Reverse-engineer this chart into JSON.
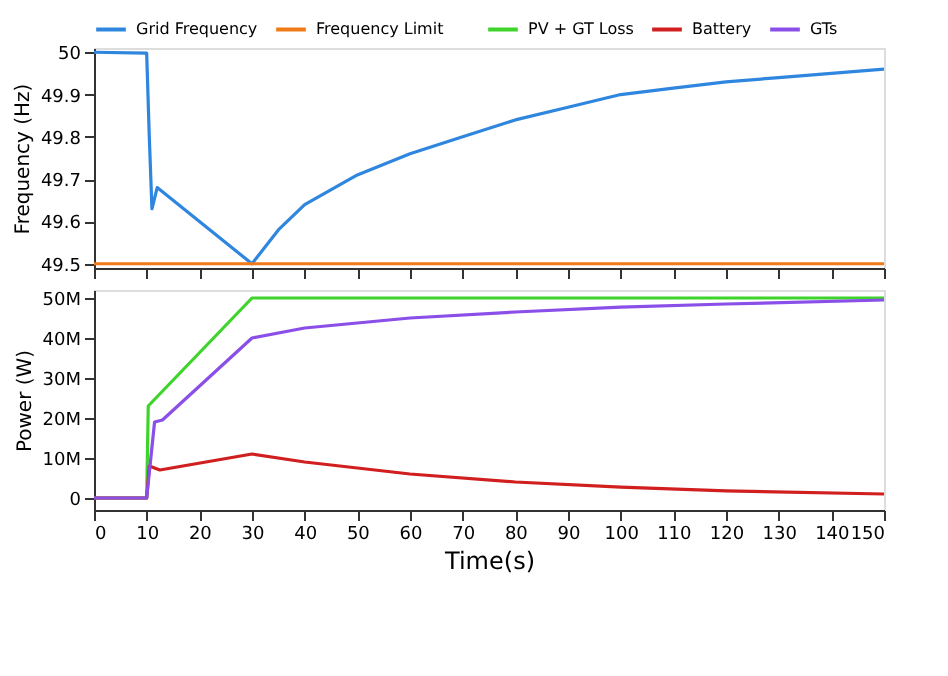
{
  "chart_data": [
    {
      "type": "line",
      "ylabel": "Frequency (Hz)",
      "xlim": [
        0,
        150
      ],
      "xticks": [
        0,
        10,
        20,
        30,
        40,
        50,
        60,
        70,
        80,
        90,
        100,
        110,
        120,
        130,
        140,
        150
      ],
      "ylim": [
        49.49,
        50.01
      ],
      "yticks": [
        49.5,
        49.6,
        49.7,
        49.8,
        49.9,
        {
          "value": 50,
          "label": "50"
        }
      ],
      "tick_labels": "y",
      "legend": "top",
      "grid": false,
      "line_style": "solid",
      "series": [
        {
          "name": "Grid Frequency",
          "color": "#2f86de",
          "x": [
            0,
            10,
            10.5,
            11,
            12,
            30,
            35,
            40,
            50,
            60,
            70,
            80,
            90,
            100,
            110,
            120,
            130,
            140,
            150
          ],
          "values": [
            50,
            49.998,
            49.8,
            49.63,
            49.68,
            49.5,
            49.58,
            49.64,
            49.71,
            49.76,
            49.8,
            49.84,
            49.87,
            49.9,
            49.915,
            49.93,
            49.94,
            49.95,
            49.96
          ]
        },
        {
          "name": "Frequency Limit",
          "color": "#f07a18",
          "x": [
            0,
            150
          ],
          "values": [
            49.5,
            49.5
          ]
        }
      ]
    },
    {
      "type": "line",
      "xlabel": "Time(s)",
      "ylabel": "Power (W)",
      "xlim": [
        0,
        150
      ],
      "xticks": [
        0,
        10,
        20,
        30,
        40,
        50,
        60,
        70,
        80,
        90,
        100,
        110,
        120,
        130,
        140,
        150
      ],
      "ylim": [
        -3000000,
        52000000
      ],
      "yticks": [
        0,
        {
          "value": 10000000,
          "label": "10M"
        },
        {
          "value": 20000000,
          "label": "20M"
        },
        {
          "value": 30000000,
          "label": "30M"
        },
        {
          "value": 40000000,
          "label": "40M"
        },
        {
          "value": 50000000,
          "label": "50M"
        }
      ],
      "legend": "top",
      "grid": false,
      "line_style": "solid",
      "series": [
        {
          "name": "PV + GT Loss",
          "color": "#3fd42b",
          "x": [
            0,
            10,
            10.3,
            30,
            150
          ],
          "values": [
            0,
            0,
            23000000,
            50000000,
            50000000
          ]
        },
        {
          "name": "Battery",
          "color": "#d11f1f",
          "x": [
            0,
            10,
            10.5,
            12.5,
            30,
            40,
            60,
            80,
            100,
            120,
            150
          ],
          "values": [
            0,
            0,
            8000000,
            7000000,
            11000000,
            9000000,
            6000000,
            4000000,
            2700000,
            1800000,
            1000000
          ]
        },
        {
          "name": "GTs",
          "color": "#8a4fe8",
          "x": [
            0,
            10,
            11.5,
            13,
            30,
            40,
            60,
            80,
            100,
            120,
            150
          ],
          "values": [
            0,
            0,
            19000000,
            19500000,
            40000000,
            42500000,
            45000000,
            46500000,
            47700000,
            48500000,
            49500000
          ]
        }
      ]
    }
  ]
}
